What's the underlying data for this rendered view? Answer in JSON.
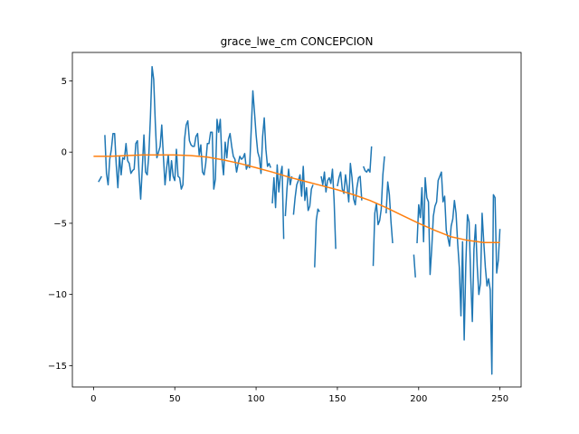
{
  "chart_data": {
    "type": "line",
    "title": "grace_lwe_cm CONCEPCION",
    "xlabel": "",
    "ylabel": "",
    "xlim": [
      -13,
      263
    ],
    "ylim": [
      -16.5,
      7
    ],
    "xticks": [
      0,
      50,
      100,
      150,
      200,
      250
    ],
    "yticks": [
      -15,
      -10,
      -5,
      0,
      5
    ],
    "grid": false,
    "colors": {
      "raw": "#1f77b4",
      "trend": "#ff7f0e"
    },
    "series": [
      {
        "type": "raw",
        "segments": [
          [
            [
              3,
              -2.1
            ],
            [
              4,
              -1.9
            ],
            [
              5,
              -1.7
            ]
          ],
          [
            [
              7,
              1.2
            ],
            [
              8,
              -1.5
            ],
            [
              9,
              -2.3
            ],
            [
              10,
              -0.5
            ],
            [
              11,
              0.2
            ],
            [
              12,
              1.3
            ],
            [
              13,
              1.3
            ],
            [
              14,
              -0.9
            ],
            [
              15,
              -2.5
            ],
            [
              16,
              -0.3
            ],
            [
              17,
              -1.6
            ],
            [
              18,
              -0.4
            ],
            [
              19,
              -0.5
            ],
            [
              20,
              0.6
            ],
            [
              21,
              -0.6
            ],
            [
              22,
              -0.8
            ],
            [
              23,
              -1.5
            ],
            [
              24,
              -1.3
            ],
            [
              25,
              -1.2
            ],
            [
              26,
              0.6
            ],
            [
              27,
              0.8
            ],
            [
              28,
              -1.5
            ],
            [
              29,
              -3.3
            ],
            [
              30,
              -1.1
            ],
            [
              31,
              1.2
            ],
            [
              32,
              -1.4
            ],
            [
              33,
              -1.6
            ],
            [
              34,
              -0.2
            ],
            [
              35,
              2.5
            ],
            [
              36,
              6.0
            ],
            [
              37,
              5.1
            ],
            [
              38,
              2.0
            ],
            [
              39,
              -0.4
            ],
            [
              40,
              0.0
            ],
            [
              41,
              0.4
            ],
            [
              42,
              1.9
            ],
            [
              43,
              -0.3
            ],
            [
              44,
              -2.3
            ],
            [
              45,
              -1.1
            ],
            [
              46,
              -0.2
            ],
            [
              47,
              -2.0
            ],
            [
              48,
              -0.6
            ],
            [
              49,
              -1.7
            ],
            [
              50,
              -2.0
            ],
            [
              51,
              0.2
            ],
            [
              52,
              -1.7
            ],
            [
              53,
              -1.8
            ],
            [
              54,
              -2.6
            ],
            [
              55,
              -2.3
            ],
            [
              56,
              0.9
            ],
            [
              57,
              1.9
            ],
            [
              58,
              2.2
            ],
            [
              59,
              0.8
            ],
            [
              60,
              0.5
            ],
            [
              61,
              0.4
            ],
            [
              62,
              0.4
            ],
            [
              63,
              1.1
            ],
            [
              64,
              1.3
            ],
            [
              65,
              -0.2
            ],
            [
              66,
              0.5
            ],
            [
              67,
              -1.4
            ],
            [
              68,
              -1.6
            ],
            [
              69,
              -0.8
            ],
            [
              70,
              0.6
            ],
            [
              71,
              0.6
            ],
            [
              72,
              1.4
            ],
            [
              73,
              1.4
            ],
            [
              74,
              -2.6
            ],
            [
              75,
              -1.9
            ],
            [
              76,
              2.3
            ],
            [
              77,
              1.4
            ],
            [
              78,
              2.3
            ],
            [
              79,
              -0.5
            ],
            [
              80,
              -1.6
            ],
            [
              81,
              0.7
            ],
            [
              82,
              -0.4
            ],
            [
              83,
              0.9
            ],
            [
              84,
              1.3
            ],
            [
              85,
              0.4
            ],
            [
              86,
              -0.3
            ],
            [
              87,
              -0.5
            ],
            [
              88,
              -1.4
            ],
            [
              89,
              -0.8
            ],
            [
              90,
              -0.3
            ],
            [
              91,
              -0.5
            ],
            [
              92,
              -0.4
            ],
            [
              93,
              -0.1
            ],
            [
              94,
              -1.2
            ],
            [
              95,
              -0.9
            ],
            [
              96,
              -1.1
            ],
            [
              97,
              1.6
            ],
            [
              98,
              4.3
            ],
            [
              99,
              2.8
            ],
            [
              100,
              1.2
            ],
            [
              101,
              0.0
            ],
            [
              102,
              -0.4
            ],
            [
              103,
              -1.5
            ],
            [
              104,
              1.1
            ],
            [
              105,
              2.4
            ],
            [
              106,
              0.2
            ],
            [
              107,
              -1.0
            ],
            [
              108,
              -0.8
            ],
            [
              109,
              -1.1
            ]
          ],
          [
            [
              110,
              -3.6
            ],
            [
              111,
              -1.8
            ],
            [
              112,
              -3.9
            ],
            [
              113,
              -0.9
            ],
            [
              114,
              -2.8
            ],
            [
              115,
              -1.6
            ],
            [
              116,
              -1.0
            ],
            [
              117,
              -6.1
            ]
          ],
          [
            [
              118,
              -4.5
            ],
            [
              119,
              -2.6
            ],
            [
              120,
              -1.2
            ],
            [
              121,
              -2.3
            ],
            [
              122,
              -1.7
            ]
          ],
          [
            [
              123,
              -4.4
            ],
            [
              124,
              -3.2
            ],
            [
              125,
              -2.3
            ],
            [
              126,
              -2.0
            ],
            [
              127,
              -1.6
            ],
            [
              128,
              -3.1
            ],
            [
              129,
              -1.0
            ],
            [
              130,
              -3.4
            ],
            [
              131,
              -2.5
            ],
            [
              132,
              -4.1
            ],
            [
              133,
              -3.8
            ],
            [
              134,
              -2.6
            ],
            [
              135,
              -2.3
            ]
          ],
          [
            [
              136,
              -8.1
            ],
            [
              137,
              -4.8
            ],
            [
              138,
              -4.0
            ],
            [
              139,
              -4.2
            ]
          ],
          [
            [
              140,
              -1.7
            ],
            [
              141,
              -2.3
            ],
            [
              142,
              -1.4
            ],
            [
              143,
              -2.8
            ],
            [
              144,
              -2.0
            ],
            [
              145,
              -1.8
            ],
            [
              146,
              -2.2
            ],
            [
              147,
              -1.2
            ],
            [
              148,
              -3.4
            ],
            [
              149,
              -6.8
            ]
          ],
          [
            [
              150,
              -2.4
            ],
            [
              151,
              -1.8
            ],
            [
              152,
              -1.4
            ],
            [
              153,
              -2.6
            ],
            [
              154,
              -2.9
            ],
            [
              155,
              -1.6
            ],
            [
              156,
              -2.4
            ],
            [
              157,
              -3.5
            ],
            [
              158,
              -0.8
            ],
            [
              159,
              -1.8
            ],
            [
              160,
              -3.3
            ],
            [
              161,
              -3.7
            ],
            [
              162,
              -2.5
            ],
            [
              163,
              -1.8
            ],
            [
              164,
              -1.7
            ],
            [
              165,
              -3.4
            ]
          ],
          [
            [
              166,
              -1.0
            ],
            [
              167,
              -1.3
            ],
            [
              168,
              -1.4
            ],
            [
              169,
              -1.2
            ],
            [
              170,
              -1.4
            ],
            [
              171,
              0.4
            ]
          ],
          [
            [
              172,
              -8.0
            ],
            [
              173,
              -4.3
            ],
            [
              174,
              -3.6
            ],
            [
              175,
              -5.1
            ],
            [
              176,
              -4.8
            ],
            [
              177,
              -4.0
            ],
            [
              178,
              -1.6
            ],
            [
              179,
              -0.3
            ]
          ],
          [
            [
              180,
              -4.3
            ],
            [
              181,
              -2.1
            ],
            [
              182,
              -3.0
            ],
            [
              183,
              -4.9
            ],
            [
              184,
              -6.4
            ]
          ],
          [
            [
              197,
              -7.2
            ],
            [
              198,
              -8.8
            ]
          ],
          [
            [
              199,
              -6.4
            ],
            [
              200,
              -3.7
            ],
            [
              201,
              -4.6
            ],
            [
              202,
              -2.5
            ],
            [
              203,
              -6.3
            ],
            [
              204,
              -1.8
            ],
            [
              205,
              -3.2
            ],
            [
              206,
              -3.5
            ],
            [
              207,
              -8.6
            ],
            [
              208,
              -6.8
            ],
            [
              209,
              -4.5
            ],
            [
              210,
              -3.8
            ],
            [
              211,
              -3.5
            ],
            [
              212,
              -2.0
            ],
            [
              213,
              -1.7
            ],
            [
              214,
              -1.4
            ],
            [
              215,
              -3.5
            ],
            [
              216,
              -3.1
            ],
            [
              217,
              -5.5
            ],
            [
              218,
              -6.0
            ],
            [
              219,
              -6.6
            ],
            [
              220,
              -5.2
            ],
            [
              221,
              -4.7
            ],
            [
              222,
              -3.4
            ],
            [
              223,
              -4.3
            ],
            [
              224,
              -6.4
            ],
            [
              225,
              -8.1
            ],
            [
              226,
              -11.5
            ],
            [
              227,
              -6.3
            ],
            [
              228,
              -13.2
            ],
            [
              229,
              -7.9
            ],
            [
              230,
              -4.4
            ],
            [
              231,
              -4.9
            ],
            [
              232,
              -8.8
            ],
            [
              233,
              -11.9
            ],
            [
              234,
              -6.8
            ],
            [
              235,
              -5.1
            ],
            [
              236,
              -8.0
            ],
            [
              237,
              -10.0
            ],
            [
              238,
              -9.2
            ],
            [
              239,
              -4.3
            ],
            [
              240,
              -6.3
            ],
            [
              241,
              -8.1
            ],
            [
              242,
              -9.4
            ],
            [
              243,
              -8.9
            ],
            [
              244,
              -9.7
            ],
            [
              245,
              -15.6
            ],
            [
              246,
              -3.0
            ],
            [
              247,
              -3.2
            ],
            [
              248,
              -8.5
            ],
            [
              249,
              -7.6
            ],
            [
              250,
              -5.4
            ]
          ]
        ]
      },
      {
        "type": "trend",
        "x": [
          0,
          10,
          20,
          30,
          40,
          50,
          60,
          70,
          80,
          90,
          100,
          110,
          120,
          130,
          140,
          150,
          160,
          170,
          180,
          190,
          200,
          210,
          220,
          230,
          240,
          250
        ],
        "values": [
          -0.3,
          -0.3,
          -0.25,
          -0.2,
          -0.2,
          -0.2,
          -0.25,
          -0.35,
          -0.55,
          -0.8,
          -1.1,
          -1.4,
          -1.75,
          -2.05,
          -2.35,
          -2.65,
          -3.0,
          -3.4,
          -3.9,
          -4.45,
          -5.0,
          -5.5,
          -5.95,
          -6.2,
          -6.35,
          -6.35
        ]
      }
    ]
  }
}
